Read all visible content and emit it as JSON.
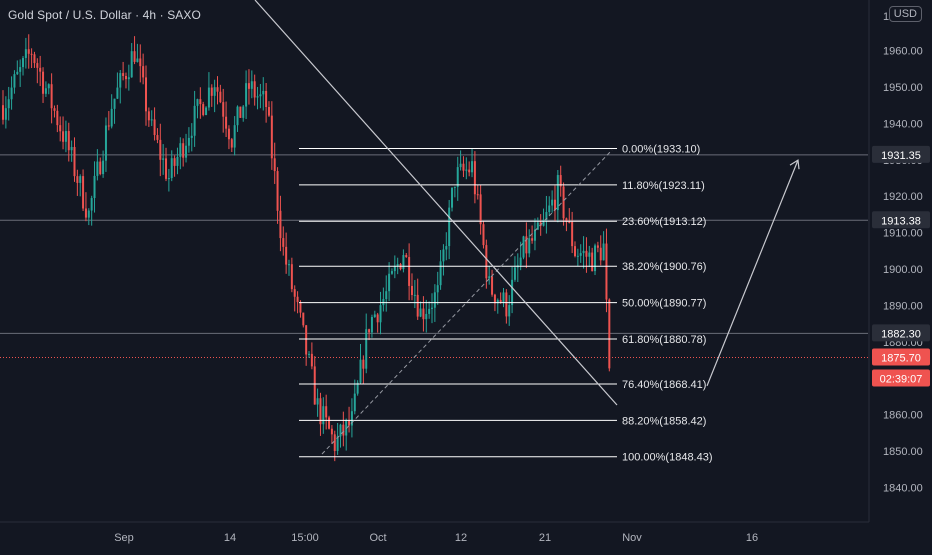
{
  "header": {
    "symbol": "Gold Spot / U.S. Dollar",
    "interval": "4h",
    "exchange": "SAXO"
  },
  "price_axis": {
    "currency_button": "USD",
    "top_partial_label": "1"
  },
  "colors": {
    "background": "#131722",
    "up_candle": "#26a69a",
    "down_candle": "#ef5350",
    "fib_line": "#ffffff",
    "drawing_line": "#c8c9cf",
    "axis_text": "#b2b5be",
    "grid": "#1e222d",
    "price_badge_bg": "#ef5350",
    "level_badge_bg": "#2a2e39"
  },
  "chart_data": {
    "type": "candlestick",
    "title": "Gold Spot / U.S. Dollar, 4h, SAXO",
    "xlabel": "",
    "ylabel": "",
    "ylim": [
      1834,
      1971
    ],
    "grid": false,
    "x_ticks": [
      "Sep",
      "14",
      "15:00",
      "Oct",
      "12",
      "21",
      "Nov",
      "16"
    ],
    "y_ticks": [
      1840,
      1850,
      1860,
      1870,
      1880,
      1890,
      1900,
      1910,
      1920,
      1930,
      1940,
      1950,
      1960
    ],
    "y_tick_labels": [
      "1840.00",
      "1850.00",
      "1860.00",
      "1870.00",
      "1880.00",
      "1890.00",
      "1900.00",
      "1910.00",
      "1920.00",
      "1930.00",
      "1940.00",
      "1950.00",
      "1960.00"
    ],
    "approx_price_path": [
      {
        "bar": 0,
        "price": 1945
      },
      {
        "bar": 10,
        "price": 1960
      },
      {
        "bar": 22,
        "price": 1935
      },
      {
        "bar": 30,
        "price": 1915
      },
      {
        "bar": 38,
        "price": 1945
      },
      {
        "bar": 46,
        "price": 1960
      },
      {
        "bar": 52,
        "price": 1938
      },
      {
        "bar": 58,
        "price": 1925
      },
      {
        "bar": 66,
        "price": 1940
      },
      {
        "bar": 74,
        "price": 1952
      },
      {
        "bar": 80,
        "price": 1936
      },
      {
        "bar": 86,
        "price": 1950
      },
      {
        "bar": 92,
        "price": 1945
      },
      {
        "bar": 98,
        "price": 1905
      },
      {
        "bar": 104,
        "price": 1885
      },
      {
        "bar": 110,
        "price": 1862
      },
      {
        "bar": 116,
        "price": 1852
      },
      {
        "bar": 122,
        "price": 1858
      },
      {
        "bar": 128,
        "price": 1885
      },
      {
        "bar": 134,
        "price": 1893
      },
      {
        "bar": 140,
        "price": 1905
      },
      {
        "bar": 146,
        "price": 1888
      },
      {
        "bar": 152,
        "price": 1893
      },
      {
        "bar": 158,
        "price": 1925
      },
      {
        "bar": 164,
        "price": 1928
      },
      {
        "bar": 170,
        "price": 1895
      },
      {
        "bar": 176,
        "price": 1890
      },
      {
        "bar": 182,
        "price": 1905
      },
      {
        "bar": 188,
        "price": 1910
      },
      {
        "bar": 194,
        "price": 1922
      },
      {
        "bar": 200,
        "price": 1905
      },
      {
        "bar": 206,
        "price": 1903
      },
      {
        "bar": 210,
        "price": 1906
      },
      {
        "bar": 212,
        "price": 1872
      }
    ],
    "fibonacci_levels": [
      {
        "label": "0.00%(1933.10)",
        "price": 1933.1
      },
      {
        "label": "11.80%(1923.11)",
        "price": 1923.11
      },
      {
        "label": "23.60%(1913.12)",
        "price": 1913.12
      },
      {
        "label": "38.20%(1900.76)",
        "price": 1900.76
      },
      {
        "label": "50.00%(1890.77)",
        "price": 1890.77
      },
      {
        "label": "61.80%(1880.78)",
        "price": 1880.78
      },
      {
        "label": "76.40%(1868.41)",
        "price": 1868.41
      },
      {
        "label": "88.20%(1858.42)",
        "price": 1858.42
      },
      {
        "label": "100.00%(1848.43)",
        "price": 1848.43
      }
    ],
    "horizontal_levels": [
      {
        "label": "1931.35",
        "price": 1931.35
      },
      {
        "label": "1913.38",
        "price": 1913.38
      },
      {
        "label": "1882.30",
        "price": 1882.3
      }
    ],
    "last_price": {
      "label": "1875.70",
      "price": 1875.7
    },
    "countdown": "02:39:07",
    "projection_arrow": {
      "from_price": 1869,
      "to_price": 1931
    }
  }
}
